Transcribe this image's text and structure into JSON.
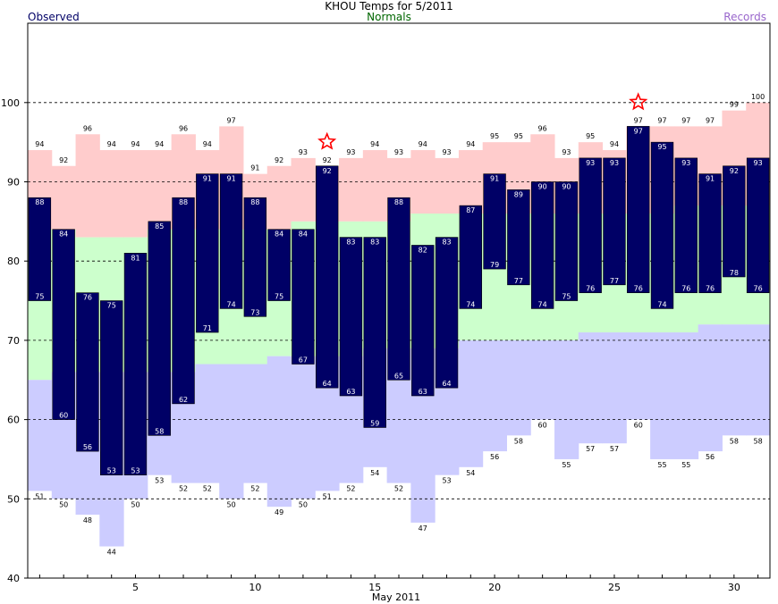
{
  "title": "KHOU Temps for 5/2011",
  "legend": {
    "observed": "Observed",
    "normals": "Normals",
    "records": "Records"
  },
  "colors": {
    "observed": "#000066",
    "normals": "#ccffcc",
    "record_high_band": "#ffcccc",
    "record_low_band": "#ccccff",
    "normals_label": "#006600",
    "records_label": "#9966cc",
    "star": "#ff0000"
  },
  "chart_data": {
    "type": "bar",
    "title": "KHOU Temps for 5/2011",
    "xlabel": "May 2011",
    "ylabel": "",
    "ylim": [
      40,
      110
    ],
    "yticks": [
      40,
      50,
      60,
      70,
      80,
      90,
      100
    ],
    "xticks": [
      5,
      10,
      15,
      20,
      25,
      30
    ],
    "grid": true,
    "days": [
      1,
      2,
      3,
      4,
      5,
      6,
      7,
      8,
      9,
      10,
      11,
      12,
      13,
      14,
      15,
      16,
      17,
      18,
      19,
      20,
      21,
      22,
      23,
      24,
      25,
      26,
      27,
      28,
      29,
      30,
      31
    ],
    "observed_high": [
      88,
      84,
      76,
      75,
      81,
      85,
      88,
      91,
      91,
      88,
      84,
      84,
      92,
      83,
      83,
      88,
      82,
      83,
      87,
      91,
      89,
      90,
      90,
      93,
      93,
      97,
      95,
      93,
      91,
      92,
      93
    ],
    "observed_low": [
      75,
      60,
      56,
      53,
      53,
      58,
      62,
      71,
      74,
      73,
      75,
      67,
      64,
      63,
      59,
      65,
      63,
      64,
      74,
      79,
      77,
      74,
      75,
      76,
      77,
      76,
      74,
      76,
      76,
      78,
      76
    ],
    "normal_high": [
      84,
      84,
      83,
      83,
      83,
      84,
      84,
      84,
      84,
      84,
      84,
      85,
      85,
      85,
      85,
      85,
      86,
      86,
      86,
      86,
      86,
      86,
      86,
      86,
      86,
      86,
      86,
      87,
      87,
      87,
      87
    ],
    "normal_low": [
      65,
      66,
      66,
      66,
      66,
      66,
      66,
      67,
      67,
      67,
      68,
      68,
      68,
      68,
      69,
      69,
      69,
      69,
      70,
      70,
      70,
      70,
      70,
      71,
      71,
      71,
      71,
      71,
      72,
      72,
      72
    ],
    "record_high": [
      94,
      92,
      96,
      94,
      94,
      94,
      96,
      94,
      97,
      91,
      92,
      93,
      92,
      93,
      94,
      93,
      94,
      93,
      94,
      95,
      95,
      96,
      93,
      95,
      94,
      97,
      97,
      97,
      97,
      99,
      100
    ],
    "record_low": [
      51,
      50,
      48,
      44,
      50,
      53,
      52,
      52,
      50,
      52,
      49,
      50,
      51,
      52,
      54,
      52,
      47,
      53,
      54,
      56,
      58,
      60,
      55,
      57,
      57,
      60,
      55,
      55,
      56,
      58,
      58
    ],
    "record_high_labels": [
      "94",
      "92",
      "96",
      "94",
      "94",
      "94",
      "96",
      "94",
      "97",
      "91",
      "92",
      "93",
      "92",
      "93",
      "94",
      "93",
      "94",
      "93",
      "94",
      "95",
      "95",
      "96",
      "93",
      "95",
      "94",
      "97",
      "97",
      "97",
      "97",
      "99",
      "100"
    ],
    "record_low_labels": [
      "51",
      "50",
      "48",
      "44",
      "50",
      "53",
      "52",
      "52",
      "50",
      "52",
      "49",
      "50",
      "51",
      "52",
      "54",
      "52",
      "47",
      "53",
      "54",
      "56",
      "58",
      "60",
      "55",
      "57",
      "57",
      "60",
      "55",
      "55",
      "56",
      "58",
      "58"
    ],
    "observed_high_labels": [
      "88",
      "84",
      "76",
      "75",
      "81",
      "85",
      "88",
      "91",
      "91",
      "88",
      "84",
      "84",
      "92",
      "83",
      "83",
      "88",
      "82",
      "83",
      "87",
      "91",
      "89",
      "90",
      "90",
      "93",
      "93",
      "97",
      "95",
      "93",
      "91",
      "92",
      "93"
    ],
    "observed_low_labels": [
      "75",
      "60",
      "56",
      "53",
      "53",
      "58",
      "62",
      "71",
      "74",
      "73",
      "75",
      "67",
      "64",
      "63",
      "59",
      "65",
      "63",
      "64",
      "74",
      "79",
      "77",
      "74",
      "75",
      "76",
      "77",
      "76",
      "74",
      "76",
      "76",
      "78",
      "76"
    ],
    "record_set_days": [
      13,
      26
    ]
  }
}
